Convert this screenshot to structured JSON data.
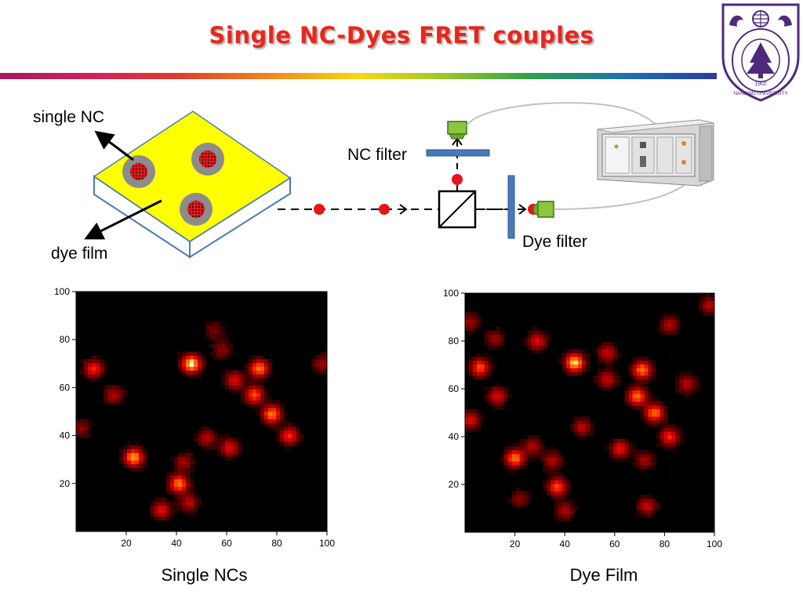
{
  "header": {
    "title": "Single NC-Dyes FRET couples",
    "logo": {
      "center_text": "1902",
      "ring_text": "NANJING UNIVERSITY",
      "icon": "nanjing-university-seal"
    }
  },
  "diagram": {
    "labels": {
      "single_nc": "single NC",
      "dye_film": "dye film",
      "nc_filter": "NC filter",
      "dye_filter": "Dye filter"
    },
    "colors": {
      "film": "#ffff00",
      "film_edge": "#4a7ab5",
      "beam_dot": "#e8141a",
      "detector": "#8dc63f",
      "filter": "#4a7ab5"
    }
  },
  "panels": [
    {
      "caption": "Single NCs",
      "x_ticks": [
        "20",
        "40",
        "60",
        "80",
        "100"
      ],
      "y_ticks": [
        "20",
        "40",
        "60",
        "80",
        "100"
      ]
    },
    {
      "caption": "Dye Film",
      "x_ticks": [
        "20",
        "40",
        "60",
        "80",
        "100"
      ],
      "y_ticks": [
        "20",
        "40",
        "60",
        "80",
        "100"
      ]
    }
  ],
  "chart_data": [
    {
      "type": "heatmap",
      "title": "Single NCs",
      "xlim": [
        0,
        100
      ],
      "ylim": [
        0,
        100
      ],
      "spots": [
        [
          7,
          68,
          0.6
        ],
        [
          23,
          31,
          0.9
        ],
        [
          46,
          70,
          1.0
        ],
        [
          73,
          68,
          0.8
        ],
        [
          71,
          57,
          0.7
        ],
        [
          78,
          49,
          0.8
        ],
        [
          85,
          40,
          0.6
        ],
        [
          63,
          63,
          0.5
        ],
        [
          41,
          20,
          0.8
        ],
        [
          34,
          9,
          0.5
        ],
        [
          15,
          57,
          0.4
        ],
        [
          52,
          39,
          0.4
        ],
        [
          61,
          35,
          0.5
        ],
        [
          43,
          29,
          0.35
        ],
        [
          58,
          76,
          0.3
        ],
        [
          55,
          84,
          0.25
        ],
        [
          98,
          70,
          0.35
        ],
        [
          2,
          43,
          0.3
        ],
        [
          45,
          12,
          0.4
        ]
      ]
    },
    {
      "type": "heatmap",
      "title": "Dye Film",
      "xlim": [
        0,
        100
      ],
      "ylim": [
        0,
        100
      ],
      "spots": [
        [
          6,
          69,
          0.7
        ],
        [
          20,
          31,
          0.8
        ],
        [
          44,
          71,
          1.0
        ],
        [
          71,
          68,
          0.8
        ],
        [
          69,
          57,
          0.8
        ],
        [
          76,
          50,
          0.8
        ],
        [
          82,
          40,
          0.6
        ],
        [
          57,
          64,
          0.45
        ],
        [
          37,
          19,
          0.7
        ],
        [
          27,
          36,
          0.4
        ],
        [
          13,
          57,
          0.5
        ],
        [
          47,
          44,
          0.4
        ],
        [
          62,
          35,
          0.55
        ],
        [
          35,
          30,
          0.4
        ],
        [
          57,
          75,
          0.45
        ],
        [
          29,
          80,
          0.5
        ],
        [
          12,
          81,
          0.35
        ],
        [
          98,
          95,
          0.4
        ],
        [
          89,
          62,
          0.4
        ],
        [
          2,
          47,
          0.5
        ],
        [
          73,
          11,
          0.45
        ],
        [
          40,
          9,
          0.4
        ],
        [
          82,
          87,
          0.4
        ],
        [
          2,
          88,
          0.35
        ],
        [
          22,
          14,
          0.3
        ],
        [
          72,
          30,
          0.35
        ]
      ]
    }
  ]
}
